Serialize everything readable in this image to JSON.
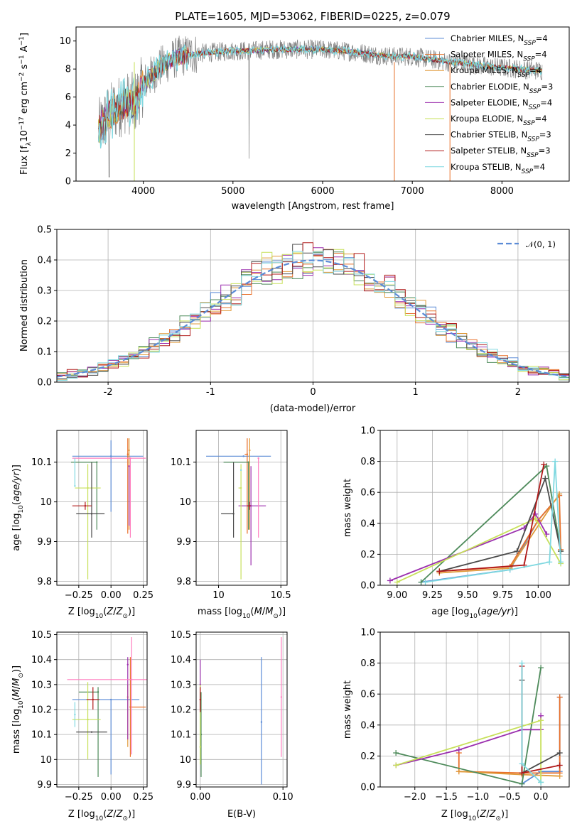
{
  "figure_title": "PLATE=1605, MJD=53062, FIBERID=0225, z=0.079",
  "colors": {
    "chabrier_miles": "#5b8bd6",
    "salpeter_miles": "#e8702a",
    "kroupa_miles": "#e09a3a",
    "chabrier_elodie": "#4d8a5a",
    "salpeter_elodie": "#9b2fae",
    "kroupa_elodie": "#c7e05a",
    "chabrier_stelib": "#4a4a4a",
    "salpeter_stelib": "#b01818",
    "kroupa_stelib": "#7fd8e0",
    "gauss": "#5b8bd6",
    "spectrum": "#7f7f7f"
  },
  "chart_data": [
    {
      "id": "spectrum",
      "type": "line",
      "title": "PLATE=1605, MJD=53062, FIBERID=0225, z=0.079",
      "xlabel": "wavelength [Angstrom, rest frame]",
      "ylabel": "Flux [f_λ10^-17 erg cm^-2 s^-1 A^-1]",
      "xlim": [
        3250,
        8750
      ],
      "ylim": [
        0,
        11
      ],
      "xticks": [
        4000,
        5000,
        6000,
        7000,
        8000
      ],
      "yticks": [
        0,
        2,
        4,
        6,
        8,
        10
      ],
      "grid": false,
      "legend_position": "right",
      "continuum": {
        "x": [
          3500,
          3600,
          3700,
          3800,
          3900,
          4000,
          4100,
          4200,
          4300,
          4400,
          4500,
          4600,
          4800,
          5000,
          5200,
          5400,
          5600,
          5800,
          6000,
          6200,
          6400,
          6600,
          6800,
          7000,
          7200,
          7400,
          7600,
          7800,
          8000,
          8200,
          8400
        ],
        "y": [
          3.6,
          4.6,
          5.2,
          5.6,
          5.5,
          6.9,
          7.6,
          8.2,
          8.6,
          8.9,
          9.0,
          9.1,
          9.2,
          9.3,
          9.3,
          9.4,
          9.4,
          9.4,
          9.4,
          9.3,
          9.2,
          9.0,
          8.9,
          8.9,
          8.7,
          8.5,
          8.4,
          8.2,
          8.1,
          8.0,
          7.9
        ]
      },
      "legend": [
        {
          "label": "Chabrier MILES, N",
          "sub": "SSP",
          "n": "=4",
          "color": "#5b8bd6"
        },
        {
          "label": "Salpeter MILES, N",
          "sub": "SSP",
          "n": "=4",
          "color": "#e8702a"
        },
        {
          "label": "Kroupa MILES, N",
          "sub": "SSP",
          "n": "=4",
          "color": "#e09a3a"
        },
        {
          "label": "Chabrier ELODIE, N",
          "sub": "SSP",
          "n": "=3",
          "color": "#4d8a5a"
        },
        {
          "label": "Salpeter ELODIE, N",
          "sub": "SSP",
          "n": "=4",
          "color": "#9b2fae"
        },
        {
          "label": "Kroupa ELODIE, N",
          "sub": "SSP",
          "n": "=4",
          "color": "#c7e05a"
        },
        {
          "label": "Chabrier STELIB, N",
          "sub": "SSP",
          "n": "=3",
          "color": "#4a4a4a"
        },
        {
          "label": "Salpeter STELIB, N",
          "sub": "SSP",
          "n": "=3",
          "color": "#b01818"
        },
        {
          "label": "Kroupa STELIB, N",
          "sub": "SSP",
          "n": "=4",
          "color": "#7fd8e0"
        }
      ]
    },
    {
      "id": "residuals",
      "type": "line",
      "xlabel": "(data-model)/error",
      "ylabel": "Normed distribution",
      "xlim": [
        -2.5,
        2.5
      ],
      "ylim": [
        0,
        0.5
      ],
      "xticks": [
        -2,
        -1,
        0,
        1,
        2
      ],
      "yticks": [
        0.0,
        0.1,
        0.2,
        0.3,
        0.4,
        0.5
      ],
      "grid": true,
      "legend_label": "𝒩(0, 1)",
      "legend_position": "top-right",
      "series": [
        {
          "name": "N(0,1)",
          "mean": 0,
          "sigma": 1
        }
      ]
    },
    {
      "id": "age_vs_Z",
      "type": "scatter",
      "xlabel": "Z [log10(Z/Z⊙)]",
      "ylabel": "age [log10(age/yr)]",
      "xlim": [
        -0.42,
        0.28
      ],
      "ylim": [
        9.79,
        10.18
      ],
      "xticks": [
        -0.25,
        0.0,
        0.25
      ],
      "xticklabels": [
        "−0.25",
        "0.00",
        "0.25"
      ],
      "yticks": [
        9.8,
        9.9,
        10.0,
        10.1
      ],
      "grid": true,
      "points": [
        {
          "color": "#5b8bd6",
          "x": 0.0,
          "xerr": [
            0.3,
            0.25
          ],
          "y": 10.115,
          "yerr": [
            0.14,
            0.04
          ]
        },
        {
          "color": "#e8702a",
          "x": 0.13,
          "xerr": [
            0.0,
            0.0
          ],
          "y": 10.12,
          "yerr": [
            0.2,
            0.04
          ]
        },
        {
          "color": "#e09a3a",
          "x": 0.14,
          "xerr": [
            0.0,
            0.0
          ],
          "y": 10.13,
          "yerr": [
            0.2,
            0.03
          ]
        },
        {
          "color": "#4d8a5a",
          "x": -0.11,
          "xerr": [
            0.2,
            0.0
          ],
          "y": 10.1,
          "yerr": [
            0.17,
            0.0
          ]
        },
        {
          "color": "#9b2fae",
          "x": 0.14,
          "xerr": [
            0.0,
            0.0
          ],
          "y": 10.09,
          "yerr": [
            0.15,
            0.0
          ]
        },
        {
          "color": "#c7e05a",
          "x": -0.18,
          "xerr": [
            0.1,
            0.1
          ],
          "y": 10.035,
          "yerr": [
            0.23,
            0.06
          ]
        },
        {
          "color": "#4a4a4a",
          "x": -0.15,
          "xerr": [
            0.12,
            0.1
          ],
          "y": 9.97,
          "yerr": [
            0.06,
            0.13
          ]
        },
        {
          "color": "#b01818",
          "x": -0.2,
          "xerr": [
            0.1,
            0.05
          ],
          "y": 9.99,
          "yerr": [
            0.01,
            0.01
          ]
        },
        {
          "color": "#ff7fbf",
          "x": 0.15,
          "xerr": [
            0.45,
            0.12
          ],
          "y": 10.11,
          "yerr": [
            0.2,
            0.0
          ]
        },
        {
          "color": "#7fd8e0",
          "x": -0.28,
          "xerr": [
            0.0,
            0.0
          ],
          "y": 10.04,
          "yerr": [
            0.0,
            0.07
          ]
        }
      ]
    },
    {
      "id": "age_vs_mass",
      "type": "scatter",
      "xlabel": "mass [log10(M/M⊙)]",
      "ylabel": "",
      "xlim": [
        9.82,
        10.55
      ],
      "ylim": [
        9.79,
        10.18
      ],
      "xticks": [
        10.0,
        10.5
      ],
      "yticks": [
        9.8,
        9.9,
        10.0,
        10.1
      ],
      "grid": true,
      "points": [
        {
          "color": "#5b8bd6",
          "x": 10.2,
          "xerr": [
            0.3,
            0.22
          ],
          "y": 10.115,
          "yerr": [
            0.0,
            0.0
          ]
        },
        {
          "color": "#e8702a",
          "x": 10.23,
          "xerr": [
            0.02,
            0.0
          ],
          "y": 10.12,
          "yerr": [
            0.2,
            0.04
          ]
        },
        {
          "color": "#e09a3a",
          "x": 10.25,
          "xerr": [
            0.0,
            0.0
          ],
          "y": 10.13,
          "yerr": [
            0.2,
            0.03
          ]
        },
        {
          "color": "#4d8a5a",
          "x": 10.24,
          "xerr": [
            0.2,
            0.0
          ],
          "y": 10.1,
          "yerr": [
            0.17,
            0.0
          ]
        },
        {
          "color": "#9b2fae",
          "x": 10.26,
          "xerr": [
            0.1,
            0.12
          ],
          "y": 9.99,
          "yerr": [
            0.15,
            0.1
          ]
        },
        {
          "color": "#c7e05a",
          "x": 10.18,
          "xerr": [
            0.02,
            0.0
          ],
          "y": 10.035,
          "yerr": [
            0.23,
            0.06
          ]
        },
        {
          "color": "#4a4a4a",
          "x": 10.12,
          "xerr": [
            0.1,
            0.0
          ],
          "y": 9.97,
          "yerr": [
            0.06,
            0.13
          ]
        },
        {
          "color": "#b01818",
          "x": 10.25,
          "xerr": [
            0.02,
            0.0
          ],
          "y": 9.99,
          "yerr": [
            0.01,
            0.01
          ]
        },
        {
          "color": "#ff7fbf",
          "x": 10.32,
          "xerr": [
            0.0,
            0.0
          ],
          "y": 10.11,
          "yerr": [
            0.2,
            0.0
          ]
        },
        {
          "color": "#7fd8e0",
          "x": 10.18,
          "xerr": [
            0.0,
            0.0
          ],
          "y": 10.08,
          "yerr": [
            0.0,
            0.0
          ]
        }
      ]
    },
    {
      "id": "weight_vs_age",
      "type": "line",
      "xlabel": "age [log10(age/yr)]",
      "ylabel": "mass weight",
      "xlim": [
        8.88,
        10.22
      ],
      "ylim": [
        0,
        1.0
      ],
      "xticks": [
        9.0,
        9.25,
        9.5,
        9.75,
        10.0
      ],
      "xticklabels": [
        "9.00",
        "9.25",
        "9.50",
        "9.75",
        "10.00"
      ],
      "yticks": [
        0.0,
        0.2,
        0.4,
        0.6,
        0.8,
        1.0
      ],
      "grid": true,
      "series": [
        {
          "color": "#5b8bd6",
          "x": [
            9.17,
            9.8,
            10.0,
            10.15
          ],
          "y": [
            0.02,
            0.1,
            0.42,
            0.58
          ]
        },
        {
          "color": "#e8702a",
          "x": [
            9.3,
            9.8,
            10.0,
            10.15,
            10.16
          ],
          "y": [
            0.09,
            0.12,
            0.42,
            0.58,
            0.23
          ]
        },
        {
          "color": "#e09a3a",
          "x": [
            9.3,
            9.8,
            10.15
          ],
          "y": [
            0.08,
            0.11,
            0.59
          ]
        },
        {
          "color": "#4d8a5a",
          "x": [
            9.17,
            10.06,
            10.16
          ],
          "y": [
            0.02,
            0.77,
            0.22
          ]
        },
        {
          "color": "#9b2fae",
          "x": [
            8.95,
            9.9,
            9.98,
            10.06
          ],
          "y": [
            0.03,
            0.37,
            0.46,
            0.33
          ]
        },
        {
          "color": "#c7e05a",
          "x": [
            9.0,
            9.98,
            10.16
          ],
          "y": [
            0.02,
            0.43,
            0.14
          ]
        },
        {
          "color": "#4a4a4a",
          "x": [
            9.3,
            9.85,
            10.05,
            10.16
          ],
          "y": [
            0.09,
            0.22,
            0.69,
            0.22
          ]
        },
        {
          "color": "#b01818",
          "x": [
            9.3,
            9.9,
            10.04
          ],
          "y": [
            0.09,
            0.13,
            0.78
          ]
        },
        {
          "color": "#7fd8e0",
          "x": [
            9.2,
            9.8,
            10.08,
            10.12,
            10.16
          ],
          "y": [
            0.02,
            0.1,
            0.15,
            0.8,
            0.15
          ]
        }
      ]
    },
    {
      "id": "mass_vs_Z",
      "type": "scatter",
      "xlabel": "Z [log10(Z/Z⊙)]",
      "ylabel": "mass [log10(M/M⊙)]",
      "xlim": [
        -0.42,
        0.28
      ],
      "ylim": [
        9.89,
        10.51
      ],
      "xticks": [
        -0.25,
        0.0,
        0.25
      ],
      "xticklabels": [
        "−0.25",
        "0.00",
        "0.25"
      ],
      "yticks": [
        9.9,
        10.0,
        10.1,
        10.2,
        10.3,
        10.4,
        10.5
      ],
      "grid": true,
      "points": [
        {
          "color": "#5b8bd6",
          "x": 0.0,
          "xerr": [
            0.3,
            0.22
          ],
          "y": 10.24,
          "yerr": [
            0.3,
            0.0
          ]
        },
        {
          "color": "#e8702a",
          "x": 0.15,
          "xerr": [
            0.0,
            0.12
          ],
          "y": 10.21,
          "yerr": [
            0.2,
            0.2
          ]
        },
        {
          "color": "#e09a3a",
          "x": 0.13,
          "xerr": [
            0.0,
            0.0
          ],
          "y": 10.25,
          "yerr": [
            0.2,
            0.05
          ]
        },
        {
          "color": "#4d8a5a",
          "x": -0.1,
          "xerr": [
            0.15,
            0.0
          ],
          "y": 10.27,
          "yerr": [
            0.34,
            0.02
          ]
        },
        {
          "color": "#9b2fae",
          "x": 0.13,
          "xerr": [
            0.0,
            0.0
          ],
          "y": 10.38,
          "yerr": [
            0.3,
            0.03
          ]
        },
        {
          "color": "#c7e05a",
          "x": -0.18,
          "xerr": [
            0.12,
            0.1
          ],
          "y": 10.16,
          "yerr": [
            0.16,
            0.15
          ]
        },
        {
          "color": "#4a4a4a",
          "x": -0.15,
          "xerr": [
            0.12,
            0.12
          ],
          "y": 10.11,
          "yerr": [
            0.0,
            0.0
          ]
        },
        {
          "color": "#b01818",
          "x": -0.14,
          "xerr": [
            0.05,
            0.05
          ],
          "y": 10.24,
          "yerr": [
            0.04,
            0.05
          ]
        },
        {
          "color": "#ff7fbf",
          "x": 0.16,
          "xerr": [
            0.5,
            0.2
          ],
          "y": 10.32,
          "yerr": [
            0.3,
            0.17
          ]
        },
        {
          "color": "#7fd8e0",
          "x": -0.28,
          "xerr": [
            0.0,
            0.0
          ],
          "y": 10.18,
          "yerr": [
            0.05,
            0.05
          ]
        }
      ]
    },
    {
      "id": "mass_vs_EBV",
      "type": "scatter",
      "xlabel": "E(B-V)",
      "ylabel": "",
      "xlim": [
        -0.005,
        0.105
      ],
      "ylim": [
        9.89,
        10.51
      ],
      "xticks": [
        0.0,
        0.1
      ],
      "xticklabels": [
        "0.00",
        "0.10"
      ],
      "yticks": [
        9.9,
        10.0,
        10.1,
        10.2,
        10.3,
        10.4,
        10.5
      ],
      "grid": true,
      "points": [
        {
          "color": "#5b8bd6",
          "x": 0.074,
          "y": 10.15,
          "yerr": [
            0.25,
            0.26
          ]
        },
        {
          "color": "#ff7fbf",
          "x": 0.098,
          "y": 10.25,
          "yerr": [
            0.24,
            0.24
          ]
        },
        {
          "color": "#9b2fae",
          "x": 0.0,
          "y": 10.3,
          "yerr": [
            0.1,
            0.1
          ]
        },
        {
          "color": "#4d8a5a",
          "x": 0.001,
          "y": 10.1,
          "yerr": [
            0.17,
            0.17
          ]
        },
        {
          "color": "#c7e05a",
          "x": 0.0,
          "y": 10.05,
          "yerr": [
            0.07,
            0.25
          ]
        },
        {
          "color": "#b01818",
          "x": 0.0,
          "y": 10.24,
          "yerr": [
            0.05,
            0.05
          ]
        }
      ]
    },
    {
      "id": "weight_vs_Z",
      "type": "line",
      "xlabel": "Z [log10(Z/Z⊙)]",
      "ylabel": "mass weight",
      "xlim": [
        -2.55,
        0.45
      ],
      "ylim": [
        0,
        1.0
      ],
      "xticks": [
        -2.0,
        -1.5,
        -1.0,
        -0.5,
        0.0
      ],
      "xticklabels": [
        "−2.0",
        "−1.5",
        "−1.0",
        "−0.5",
        "0.0"
      ],
      "yticks": [
        0.0,
        0.2,
        0.4,
        0.6,
        0.8,
        1.0
      ],
      "grid": true,
      "series": [
        {
          "color": "#5b8bd6",
          "x": [
            -0.3,
            0.0,
            0.3,
            0.3
          ],
          "y": [
            0.02,
            0.1,
            0.1,
            0.58
          ]
        },
        {
          "color": "#e8702a",
          "x": [
            -1.3,
            -1.3,
            -0.3,
            0.3,
            0.3
          ],
          "y": [
            0.22,
            0.1,
            0.09,
            0.09,
            0.58
          ]
        },
        {
          "color": "#e09a3a",
          "x": [
            -1.3,
            -0.3,
            0.3
          ],
          "y": [
            0.1,
            0.08,
            0.07
          ]
        },
        {
          "color": "#4d8a5a",
          "x": [
            -2.3,
            -0.3,
            0.0
          ],
          "y": [
            0.22,
            0.02,
            0.77
          ]
        },
        {
          "color": "#9b2fae",
          "x": [
            -2.3,
            -1.3,
            -0.3,
            0.0,
            0.0
          ],
          "y": [
            0.14,
            0.24,
            0.37,
            0.37,
            0.46
          ]
        },
        {
          "color": "#c7e05a",
          "x": [
            -2.3,
            0.0,
            0.0
          ],
          "y": [
            0.14,
            0.43,
            0.03
          ]
        },
        {
          "color": "#4a4a4a",
          "x": [
            -0.3,
            -0.3,
            0.3
          ],
          "y": [
            0.69,
            0.09,
            0.22
          ]
        },
        {
          "color": "#b01818",
          "x": [
            -0.3,
            -0.3,
            0.3
          ],
          "y": [
            0.78,
            0.09,
            0.14
          ]
        },
        {
          "color": "#7fd8e0",
          "x": [
            -0.3,
            -0.3,
            0.0,
            0.0
          ],
          "y": [
            0.8,
            0.15,
            0.03,
            0.03
          ]
        }
      ]
    }
  ]
}
